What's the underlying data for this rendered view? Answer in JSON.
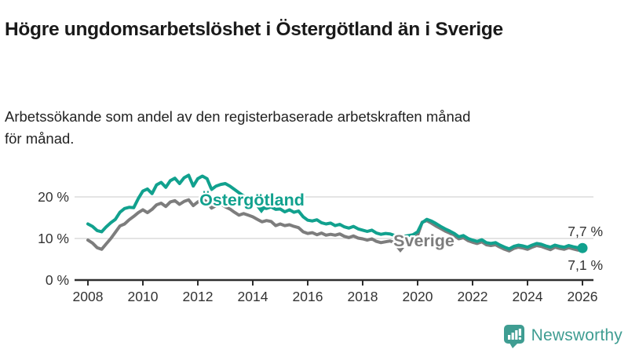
{
  "header": {
    "title": "Högre ungdomsarbetslöshet i Östergötland än i Sverige",
    "subtitle": "Arbetssökande som andel av den registerbaserade arbetskraften månad för månad."
  },
  "chart_data": {
    "type": "line",
    "x_start": 2008,
    "x_step_years": 0.1666667,
    "x_ticks": [
      2008,
      2010,
      2012,
      2014,
      2016,
      2018,
      2020,
      2022,
      2024,
      2026
    ],
    "y_ticks": [
      {
        "value": 0,
        "label": "0 %"
      },
      {
        "value": 10,
        "label": "10 %"
      },
      {
        "value": 20,
        "label": "20 %"
      }
    ],
    "ylim": [
      0,
      28
    ],
    "grid": "horizontal",
    "legend_position": "inline-labels",
    "series": [
      {
        "name": "Sverige",
        "color": "#7d7d7d",
        "end_label": "7,1 %",
        "values": [
          9.6,
          8.9,
          7.8,
          7.4,
          8.7,
          10.0,
          11.5,
          13.0,
          13.5,
          14.5,
          15.3,
          16.2,
          16.9,
          16.2,
          17.0,
          18.1,
          18.5,
          17.7,
          18.8,
          19.1,
          18.2,
          18.9,
          19.3,
          17.9,
          18.8,
          19.5,
          18.8,
          17.3,
          17.9,
          18.3,
          17.6,
          17.1,
          16.3,
          15.6,
          16.0,
          15.6,
          15.2,
          14.6,
          14.0,
          14.3,
          14.1,
          13.1,
          13.5,
          13.1,
          13.3,
          12.9,
          12.6,
          11.6,
          11.2,
          11.4,
          10.9,
          11.3,
          10.8,
          11.0,
          10.8,
          11.1,
          10.5,
          10.2,
          10.6,
          10.1,
          9.9,
          9.6,
          9.9,
          9.3,
          9.0,
          9.2,
          9.4,
          9.0,
          8.7,
          8.9,
          9.1,
          9.5,
          10.8,
          13.9,
          14.3,
          13.7,
          13.0,
          12.4,
          11.8,
          11.3,
          10.7,
          9.9,
          10.2,
          9.5,
          9.1,
          8.8,
          9.2,
          8.5,
          8.3,
          8.5,
          7.9,
          7.4,
          7.0,
          7.6,
          7.9,
          7.7,
          7.4,
          7.9,
          8.3,
          8.1,
          7.7,
          7.3,
          7.9,
          7.6,
          7.4,
          7.8,
          7.5,
          7.2,
          7.1
        ]
      },
      {
        "name": "Östergötland",
        "color": "#11a18e",
        "end_label": "7,7 %",
        "values": [
          13.5,
          12.9,
          11.9,
          11.6,
          12.8,
          13.8,
          14.6,
          16.3,
          17.2,
          17.5,
          17.4,
          19.6,
          21.4,
          21.9,
          20.8,
          22.9,
          23.5,
          22.3,
          23.9,
          24.5,
          23.2,
          24.6,
          25.2,
          22.6,
          24.4,
          25.0,
          24.4,
          21.8,
          22.6,
          23.0,
          23.2,
          22.6,
          21.8,
          21.0,
          20.2,
          19.2,
          18.6,
          18.0,
          17.4,
          17.2,
          17.6,
          17.0,
          17.1,
          16.4,
          16.9,
          16.3,
          16.6,
          15.2,
          14.4,
          14.2,
          14.5,
          13.8,
          13.5,
          13.7,
          13.1,
          13.4,
          12.8,
          12.5,
          12.9,
          12.3,
          12.0,
          11.7,
          12.0,
          11.3,
          11.0,
          11.2,
          11.1,
          10.7,
          10.3,
          10.5,
          10.7,
          10.9,
          11.6,
          13.8,
          14.6,
          14.2,
          13.6,
          12.9,
          12.3,
          11.8,
          11.2,
          10.4,
          10.7,
          10.0,
          9.6,
          9.3,
          9.7,
          9.0,
          8.8,
          9.0,
          8.4,
          7.9,
          7.5,
          8.1,
          8.4,
          8.2,
          7.9,
          8.4,
          8.8,
          8.6,
          8.2,
          7.9,
          8.4,
          8.1,
          7.9,
          8.3,
          8.0,
          7.8,
          7.7
        ]
      }
    ]
  },
  "branding": {
    "logo_text": "Newsworthy",
    "logo_color": "#3f9d92",
    "logo_icon": "bar-chart-speech-bubble-icon"
  }
}
